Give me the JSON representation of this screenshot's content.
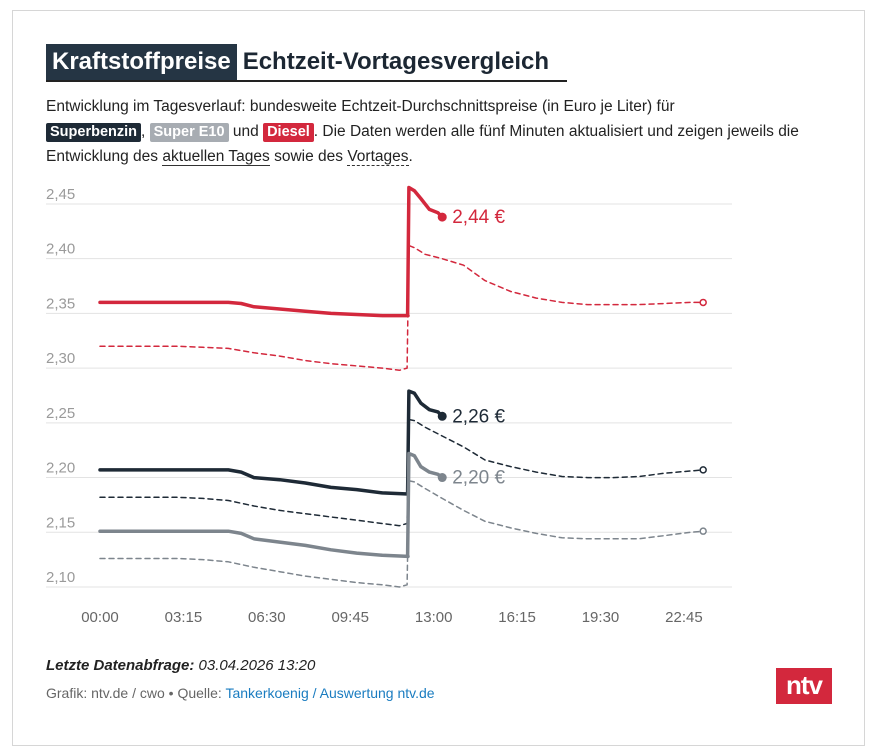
{
  "header": {
    "title_part1": "Kraftstoffpreise",
    "title_part2": "Echtzeit-Vortagesvergleich"
  },
  "description": {
    "text1": "Entwicklung im Tagesverlauf: bundesweite Echtzeit-Durchschnittspreise (in Euro je Liter) für",
    "pill_super": "Superbenzin",
    "sep1": ",",
    "pill_e10": "Super E10",
    "text_und": "und",
    "pill_diesel": "Diesel",
    "text2": ". Die Daten werden alle fünf Minuten aktualisiert und zeigen jeweils die Entwicklung des",
    "link_today": "aktuellen Tages",
    "text_sowie": "sowie des",
    "link_yesterday": "Vortages",
    "text_end": "."
  },
  "colors": {
    "diesel": "#d3283d",
    "super": "#1e2a36",
    "e10": "#7d858d",
    "grid": "#e3e3e3",
    "axis_text": "#9a9a9a"
  },
  "chart_data": {
    "type": "line",
    "title": "",
    "xlabel": "",
    "ylabel": "",
    "ylim": [
      2.1,
      2.46
    ],
    "xlim_minutes": [
      0,
      1440
    ],
    "x_tick_labels": [
      "00:00",
      "03:15",
      "06:30",
      "09:45",
      "13:00",
      "16:15",
      "19:30",
      "22:45"
    ],
    "y_tick_labels": [
      "2,10",
      "2,15",
      "2,20",
      "2,25",
      "2,30",
      "2,35",
      "2,40",
      "2,45"
    ],
    "y_ticks": [
      2.1,
      2.15,
      2.2,
      2.25,
      2.3,
      2.35,
      2.4,
      2.45
    ],
    "grid": true,
    "current_labels": {
      "diesel": "2,44 €",
      "super": "2,26 €",
      "e10": "2,20 €"
    },
    "series": [
      {
        "name": "Diesel",
        "key": "diesel",
        "style": "solid",
        "x": [
          0,
          300,
          330,
          360,
          420,
          480,
          540,
          600,
          660,
          720,
          719,
          722,
          735,
          750,
          770,
          790,
          800
        ],
        "y": [
          2.36,
          2.36,
          2.359,
          2.356,
          2.354,
          2.352,
          2.35,
          2.349,
          2.348,
          2.348,
          2.348,
          2.465,
          2.462,
          2.455,
          2.445,
          2.442,
          2.438
        ]
      },
      {
        "name": "Diesel",
        "key": "diesel",
        "style": "dashed",
        "x": [
          0,
          180,
          240,
          300,
          360,
          420,
          480,
          540,
          600,
          660,
          700,
          718,
          722,
          735,
          760,
          800,
          850,
          900,
          960,
          1020,
          1080,
          1140,
          1200,
          1260,
          1320,
          1380,
          1410
        ],
        "y": [
          2.32,
          2.32,
          2.319,
          2.318,
          2.314,
          2.311,
          2.307,
          2.304,
          2.302,
          2.3,
          2.298,
          2.3,
          2.412,
          2.41,
          2.404,
          2.4,
          2.394,
          2.38,
          2.37,
          2.364,
          2.36,
          2.358,
          2.358,
          2.358,
          2.359,
          2.36,
          2.36
        ]
      },
      {
        "name": "Superbenzin",
        "key": "super",
        "style": "solid",
        "x": [
          0,
          300,
          330,
          360,
          420,
          480,
          540,
          600,
          660,
          720,
          719,
          722,
          735,
          750,
          770,
          790,
          800
        ],
        "y": [
          2.207,
          2.207,
          2.205,
          2.2,
          2.198,
          2.195,
          2.191,
          2.189,
          2.186,
          2.185,
          2.185,
          2.279,
          2.277,
          2.268,
          2.262,
          2.26,
          2.256
        ]
      },
      {
        "name": "Superbenzin",
        "key": "super",
        "style": "dashed",
        "x": [
          0,
          180,
          240,
          300,
          360,
          420,
          480,
          540,
          600,
          660,
          700,
          718,
          722,
          735,
          760,
          800,
          850,
          900,
          960,
          1020,
          1080,
          1140,
          1200,
          1260,
          1320,
          1380,
          1410
        ],
        "y": [
          2.182,
          2.182,
          2.181,
          2.179,
          2.174,
          2.17,
          2.167,
          2.164,
          2.161,
          2.158,
          2.156,
          2.158,
          2.253,
          2.252,
          2.246,
          2.238,
          2.228,
          2.216,
          2.21,
          2.205,
          2.201,
          2.2,
          2.2,
          2.201,
          2.204,
          2.206,
          2.207
        ]
      },
      {
        "name": "Super E10",
        "key": "e10",
        "style": "solid",
        "x": [
          0,
          300,
          330,
          360,
          420,
          480,
          540,
          600,
          660,
          720,
          719,
          722,
          735,
          750,
          770,
          790,
          800
        ],
        "y": [
          2.151,
          2.151,
          2.149,
          2.144,
          2.141,
          2.138,
          2.134,
          2.131,
          2.129,
          2.128,
          2.128,
          2.222,
          2.22,
          2.21,
          2.205,
          2.203,
          2.2
        ]
      },
      {
        "name": "Super E10",
        "key": "e10",
        "style": "dashed",
        "x": [
          0,
          180,
          240,
          300,
          360,
          420,
          480,
          540,
          600,
          660,
          700,
          718,
          722,
          735,
          760,
          800,
          850,
          900,
          960,
          1020,
          1080,
          1140,
          1200,
          1260,
          1320,
          1380,
          1410
        ],
        "y": [
          2.126,
          2.126,
          2.125,
          2.123,
          2.118,
          2.114,
          2.11,
          2.107,
          2.104,
          2.102,
          2.1,
          2.102,
          2.197,
          2.196,
          2.19,
          2.181,
          2.17,
          2.16,
          2.154,
          2.149,
          2.145,
          2.144,
          2.144,
          2.144,
          2.147,
          2.15,
          2.151
        ]
      }
    ]
  },
  "footer": {
    "last_update_label": "Letzte Datenabfrage:",
    "last_update_value": "03.04.2026 13:20",
    "credit_prefix": "Grafik: ntv.de / cwo • Quelle:",
    "credit_link": "Tankerkoenig / Auswertung ntv.de",
    "logo": "ntv"
  }
}
